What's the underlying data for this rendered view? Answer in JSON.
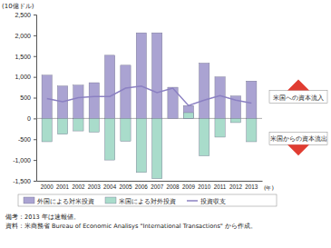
{
  "chart_data": {
    "type": "bar",
    "unit_label": "(10億ドル)",
    "x_label": "(年)",
    "categories": [
      "2000",
      "2001",
      "2002",
      "2003",
      "2004",
      "2005",
      "2006",
      "2007",
      "2008",
      "2009",
      "2010",
      "2011",
      "2012",
      "2013"
    ],
    "series": [
      {
        "name": "外国による対米投資",
        "type": "bar",
        "color": "#aaa3d2",
        "values": [
          1040,
          780,
          800,
          860,
          1520,
          1280,
          2060,
          2060,
          750,
          310,
          1330,
          1000,
          540,
          900
        ]
      },
      {
        "name": "米国による対外投資",
        "type": "bar",
        "color": "#a9dccb",
        "values": [
          -560,
          -380,
          -300,
          -330,
          -1000,
          -550,
          -1300,
          -1450,
          0,
          140,
          -900,
          -450,
          -100,
          -560
        ]
      },
      {
        "name": "投資収支",
        "type": "line",
        "color": "#8b80c2",
        "values": [
          480,
          400,
          500,
          530,
          530,
          730,
          780,
          620,
          730,
          310,
          440,
          550,
          440,
          370
        ]
      }
    ],
    "ylim": [
      -1500,
      2500
    ],
    "yticks": [
      {
        "value": -1500,
        "label": "-1,500"
      },
      {
        "value": -1000,
        "label": "-1,000"
      },
      -500,
      0,
      500,
      {
        "value": 1000,
        "label": "1,000"
      },
      {
        "value": 1500,
        "label": "1,500"
      },
      {
        "value": 2000,
        "label": "2,000"
      },
      {
        "value": 2500,
        "label": "2,500"
      }
    ],
    "grid": false,
    "legend": "bottom",
    "annotations": [
      "米国への資本流入",
      "米国からの資本流出"
    ],
    "notes": [
      "備考：2013 年は速報値。",
      "資料：米商務省 Bureau of Economic Analisys \"International Transactions\" から作成。"
    ]
  }
}
